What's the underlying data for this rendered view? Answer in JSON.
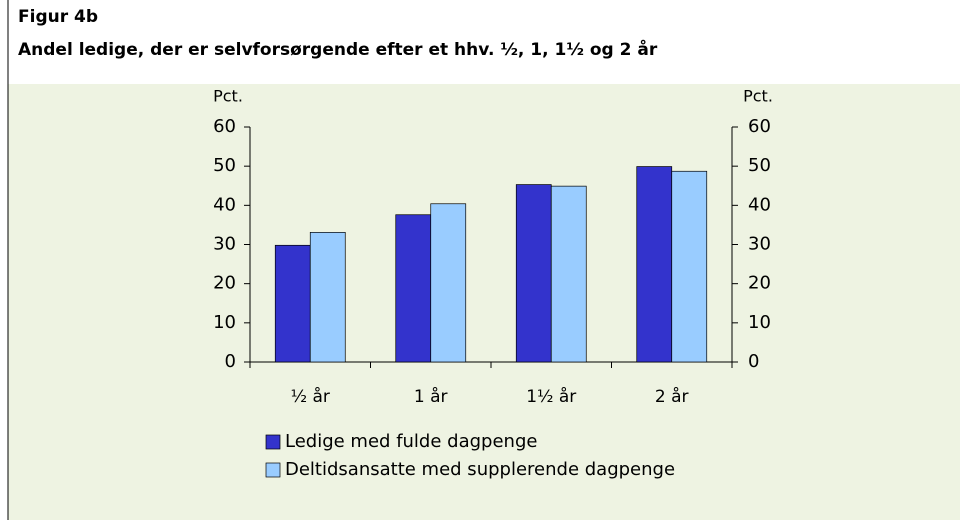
{
  "chart_data": {
    "type": "bar",
    "title": "Figur 4b",
    "subtitle": "Andel ledige, der er selvforsørgende efter et hhv. ½, 1, 1½ og 2 år",
    "ylabel": "Pct.",
    "y2label": "Pct.",
    "categories": [
      "½ år",
      "1 år",
      "1½ år",
      "2 år"
    ],
    "series": [
      {
        "name": "Ledige med fulde dagpenge",
        "color": "#3333cc",
        "values": [
          29.8,
          37.6,
          45.3,
          49.9
        ]
      },
      {
        "name": "Deltidsansatte med supplerende dagpenge",
        "color": "#99ccff",
        "values": [
          33.1,
          40.4,
          44.9,
          48.7
        ]
      }
    ],
    "ylim": [
      0,
      60
    ],
    "yticks": [
      0,
      10,
      20,
      30,
      40,
      50,
      60
    ],
    "y2lim": [
      0,
      60
    ],
    "y2ticks": [
      0,
      10,
      20,
      30,
      40,
      50,
      60
    ],
    "grid": false,
    "legend": "bottom"
  }
}
